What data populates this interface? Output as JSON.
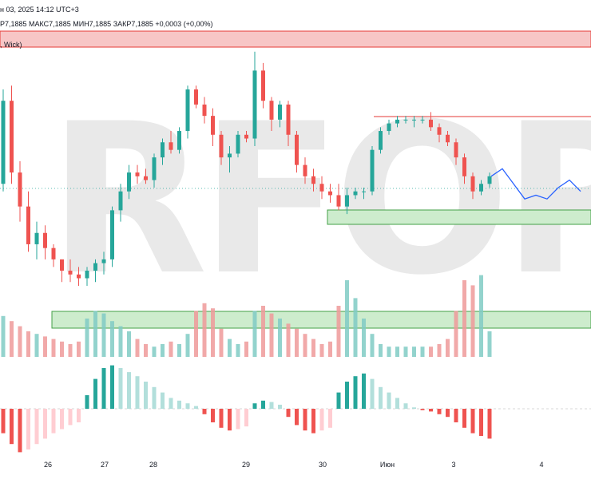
{
  "header": {
    "date_line": "н 03, 2025 14:12 UTC+3",
    "ohlc_line": "Р7,1885  МАКС7,1885  МИН7,1885  ЗАКР7,1885  +0,0003 (+0,00%)",
    "zone_label": ", Wick)"
  },
  "watermark": "RFOREX.c",
  "colors": {
    "bull": "#26a69a",
    "bear": "#ef5350",
    "bull_light": "#b2dfdb",
    "bear_light": "#ffcdd2",
    "zone_red": "#f7c6c6",
    "zone_green": "#cdeccd",
    "projection": "#2962ff"
  },
  "chart_data": [
    {
      "type": "candlestick",
      "title": "",
      "x_tick_labels": [
        "26",
        "27",
        "28",
        "29",
        "30",
        "Июн",
        "3",
        "4"
      ],
      "candles_description": "",
      "candles": [
        [
          7.3,
          7.55,
          7.28,
          7.52
        ],
        [
          7.52,
          7.56,
          7.3,
          7.33
        ],
        [
          7.33,
          7.36,
          7.2,
          7.24
        ],
        [
          7.24,
          7.28,
          7.12,
          7.14
        ],
        [
          7.14,
          7.2,
          7.1,
          7.17
        ],
        [
          7.17,
          7.19,
          7.1,
          7.13
        ],
        [
          7.13,
          7.14,
          7.08,
          7.1
        ],
        [
          7.1,
          7.1,
          7.04,
          7.07
        ],
        [
          7.07,
          7.1,
          7.04,
          7.06
        ],
        [
          7.06,
          7.08,
          7.03,
          7.05
        ],
        [
          7.05,
          7.08,
          7.03,
          7.07
        ],
        [
          7.07,
          7.1,
          7.04,
          7.09
        ],
        [
          7.09,
          7.12,
          7.06,
          7.1
        ],
        [
          7.1,
          7.24,
          7.08,
          7.23
        ],
        [
          7.23,
          7.3,
          7.2,
          7.28
        ],
        [
          7.28,
          7.35,
          7.26,
          7.33
        ],
        [
          7.33,
          7.35,
          7.3,
          7.32
        ],
        [
          7.32,
          7.34,
          7.3,
          7.31
        ],
        [
          7.31,
          7.38,
          7.29,
          7.37
        ],
        [
          7.37,
          7.42,
          7.35,
          7.41
        ],
        [
          7.41,
          7.44,
          7.38,
          7.39
        ],
        [
          7.39,
          7.45,
          7.38,
          7.44
        ],
        [
          7.44,
          7.56,
          7.42,
          7.55
        ],
        [
          7.55,
          7.56,
          7.5,
          7.51
        ],
        [
          7.51,
          7.53,
          7.46,
          7.48
        ],
        [
          7.48,
          7.5,
          7.4,
          7.43
        ],
        [
          7.43,
          7.44,
          7.35,
          7.37
        ],
        [
          7.37,
          7.4,
          7.33,
          7.38
        ],
        [
          7.38,
          7.44,
          7.37,
          7.43
        ],
        [
          7.43,
          7.44,
          7.41,
          7.42
        ],
        [
          7.42,
          7.65,
          7.4,
          7.6
        ],
        [
          7.6,
          7.62,
          7.5,
          7.52
        ],
        [
          7.52,
          7.53,
          7.44,
          7.47
        ],
        [
          7.47,
          7.52,
          7.45,
          7.51
        ],
        [
          7.51,
          7.52,
          7.4,
          7.43
        ],
        [
          7.43,
          7.44,
          7.33,
          7.35
        ],
        [
          7.35,
          7.37,
          7.3,
          7.32
        ],
        [
          7.32,
          7.34,
          7.28,
          7.3
        ],
        [
          7.3,
          7.32,
          7.26,
          7.28
        ],
        [
          7.28,
          7.3,
          7.25,
          7.27
        ],
        [
          7.27,
          7.3,
          7.23,
          7.24
        ],
        [
          7.24,
          7.29,
          7.22,
          7.27
        ],
        [
          7.27,
          7.29,
          7.26,
          7.28
        ],
        [
          7.28,
          7.29,
          7.26,
          7.28
        ],
        [
          7.28,
          7.4,
          7.27,
          7.39
        ],
        [
          7.39,
          7.45,
          7.38,
          7.44
        ],
        [
          7.44,
          7.47,
          7.43,
          7.46
        ],
        [
          7.46,
          7.48,
          7.45,
          7.47
        ],
        [
          7.47,
          7.48,
          7.46,
          7.47
        ],
        [
          7.47,
          7.48,
          7.45,
          7.47
        ],
        [
          7.47,
          7.48,
          7.46,
          7.47
        ],
        [
          7.47,
          7.49,
          7.44,
          7.45
        ],
        [
          7.45,
          7.46,
          7.41,
          7.43
        ],
        [
          7.43,
          7.44,
          7.4,
          7.41
        ],
        [
          7.41,
          7.42,
          7.35,
          7.37
        ],
        [
          7.37,
          7.38,
          7.3,
          7.32
        ],
        [
          7.32,
          7.33,
          7.26,
          7.28
        ],
        [
          7.28,
          7.31,
          7.27,
          7.3
        ],
        [
          7.3,
          7.33,
          7.29,
          7.32
        ]
      ],
      "volume": [
        32,
        28,
        24,
        20,
        18,
        16,
        14,
        12,
        10,
        12,
        30,
        36,
        34,
        28,
        24,
        20,
        14,
        10,
        8,
        10,
        12,
        10,
        18,
        36,
        42,
        38,
        22,
        14,
        10,
        12,
        36,
        40,
        34,
        30,
        26,
        22,
        18,
        14,
        10,
        12,
        40,
        60,
        46,
        30,
        18,
        10,
        8,
        8,
        8,
        8,
        8,
        8,
        10,
        14,
        36,
        60,
        56,
        64,
        20
      ],
      "oscillator": [
        -18,
        -26,
        -32,
        -30,
        -26,
        -22,
        -18,
        -15,
        -12,
        -10,
        10,
        22,
        30,
        32,
        30,
        27,
        24,
        20,
        16,
        12,
        8,
        6,
        4,
        2,
        -4,
        -10,
        -14,
        -16,
        -15,
        -13,
        4,
        6,
        5,
        3,
        -6,
        -12,
        -16,
        -18,
        -16,
        -14,
        12,
        20,
        24,
        26,
        22,
        16,
        12,
        8,
        4,
        1,
        -1,
        -2,
        -4,
        -6,
        -10,
        -14,
        -18,
        -20,
        -22
      ],
      "projection": [
        7.32,
        7.34,
        7.3,
        7.26,
        7.27,
        7.26,
        7.29,
        7.31,
        7.28
      ],
      "zones": {
        "resistance": [
          7.66,
          7.69
        ],
        "support_1": [
          7.27,
          7.295
        ],
        "support_2": [
          6.92,
          6.96
        ]
      },
      "resistance_line": 7.47,
      "last_price_line": 7.34
    }
  ]
}
